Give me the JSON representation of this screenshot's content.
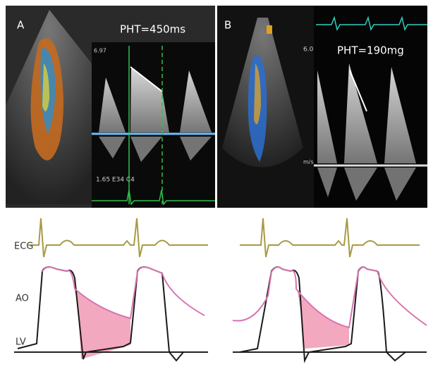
{
  "panel_a": {
    "label": "A",
    "pht": "PHT=450ms",
    "scale_top": "6.97",
    "footer": "1.65 E34 C4"
  },
  "panel_b": {
    "label": "B",
    "pht": "PHT=190mg",
    "scale_top": "6.0",
    "scale_unit": "m/s"
  },
  "traces": {
    "ecg": "ECG",
    "ao": "AO",
    "lv": "LV"
  }
}
